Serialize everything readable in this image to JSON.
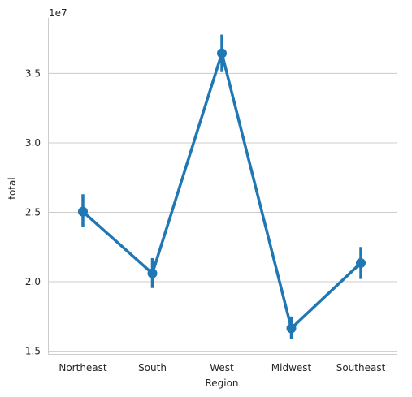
{
  "chart_data": {
    "type": "line",
    "xlabel": "Region",
    "ylabel": "total",
    "offset_text": "1e7",
    "categories": [
      "Northeast",
      "South",
      "West",
      "Midwest",
      "Southeast"
    ],
    "series": [
      {
        "values": [
          2.505,
          2.06,
          3.645,
          1.665,
          2.135
        ],
        "ci_low": [
          2.395,
          1.955,
          3.51,
          1.59,
          2.02
        ],
        "ci_high": [
          2.63,
          2.17,
          3.78,
          1.75,
          2.25
        ]
      }
    ],
    "value_scale": 10000000,
    "ylim": [
      1.48,
      3.9
    ],
    "yticks": [
      1.5,
      2.0,
      2.5,
      3.0,
      3.5
    ],
    "ytick_labels": [
      "1.5",
      "2.0",
      "2.5",
      "3.0",
      "3.5"
    ],
    "grid": "horizontal",
    "color": "#1f77b4"
  }
}
